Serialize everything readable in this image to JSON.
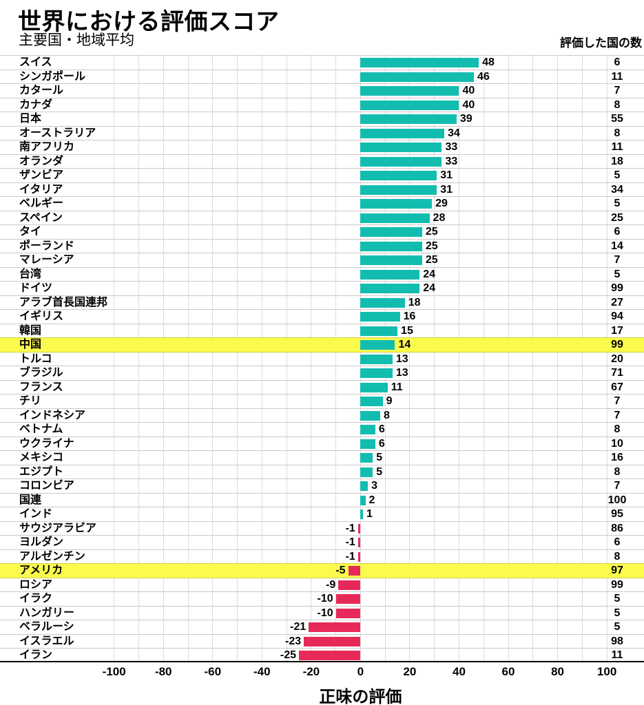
{
  "colors": {
    "positive_bar": "#12bdb0",
    "negative_bar": "#e7295a",
    "highlight_row": "#fbfb4d",
    "grid_vertical": "#dcdcdc",
    "grid_horizontal": "#c9c9c9",
    "axis_line": "#000000",
    "text": "#000000"
  },
  "chart_data": {
    "type": "bar",
    "orientation": "horizontal",
    "title": "世界における評価スコア",
    "subtitle": "主要国・地域平均",
    "counts_header": "評価した国の数",
    "xlabel": "正味の評価",
    "xlim": [
      -100,
      100
    ],
    "x_ticks": [
      -100,
      -80,
      -60,
      -40,
      -20,
      0,
      20,
      40,
      60,
      80,
      100
    ],
    "x_grid_step": 10,
    "grid": true,
    "legend": "none",
    "rows": [
      {
        "label": "スイス",
        "value": 48,
        "count": 6,
        "highlight": false
      },
      {
        "label": "シンガポール",
        "value": 46,
        "count": 11,
        "highlight": false
      },
      {
        "label": "カタール",
        "value": 40,
        "count": 7,
        "highlight": false
      },
      {
        "label": "カナダ",
        "value": 40,
        "count": 8,
        "highlight": false
      },
      {
        "label": "日本",
        "value": 39,
        "count": 55,
        "highlight": false
      },
      {
        "label": "オーストラリア",
        "value": 34,
        "count": 8,
        "highlight": false
      },
      {
        "label": "南アフリカ",
        "value": 33,
        "count": 11,
        "highlight": false
      },
      {
        "label": "オランダ",
        "value": 33,
        "count": 18,
        "highlight": false
      },
      {
        "label": "ザンビア",
        "value": 31,
        "count": 5,
        "highlight": false
      },
      {
        "label": "イタリア",
        "value": 31,
        "count": 34,
        "highlight": false
      },
      {
        "label": "ベルギー",
        "value": 29,
        "count": 5,
        "highlight": false
      },
      {
        "label": "スペイン",
        "value": 28,
        "count": 25,
        "highlight": false
      },
      {
        "label": "タイ",
        "value": 25,
        "count": 6,
        "highlight": false
      },
      {
        "label": "ポーランド",
        "value": 25,
        "count": 14,
        "highlight": false
      },
      {
        "label": "マレーシア",
        "value": 25,
        "count": 7,
        "highlight": false
      },
      {
        "label": "台湾",
        "value": 24,
        "count": 5,
        "highlight": false
      },
      {
        "label": "ドイツ",
        "value": 24,
        "count": 99,
        "highlight": false
      },
      {
        "label": "アラブ首長国連邦",
        "value": 18,
        "count": 27,
        "highlight": false
      },
      {
        "label": "イギリス",
        "value": 16,
        "count": 94,
        "highlight": false
      },
      {
        "label": "韓国",
        "value": 15,
        "count": 17,
        "highlight": false
      },
      {
        "label": "中国",
        "value": 14,
        "count": 99,
        "highlight": true
      },
      {
        "label": "トルコ",
        "value": 13,
        "count": 20,
        "highlight": false
      },
      {
        "label": "ブラジル",
        "value": 13,
        "count": 71,
        "highlight": false
      },
      {
        "label": "フランス",
        "value": 11,
        "count": 67,
        "highlight": false
      },
      {
        "label": "チリ",
        "value": 9,
        "count": 7,
        "highlight": false
      },
      {
        "label": "インドネシア",
        "value": 8,
        "count": 7,
        "highlight": false
      },
      {
        "label": "ベトナム",
        "value": 6,
        "count": 8,
        "highlight": false
      },
      {
        "label": "ウクライナ",
        "value": 6,
        "count": 10,
        "highlight": false
      },
      {
        "label": "メキシコ",
        "value": 5,
        "count": 16,
        "highlight": false
      },
      {
        "label": "エジプト",
        "value": 5,
        "count": 8,
        "highlight": false
      },
      {
        "label": "コロンビア",
        "value": 3,
        "count": 7,
        "highlight": false
      },
      {
        "label": "国連",
        "value": 2,
        "count": 100,
        "highlight": false
      },
      {
        "label": "インド",
        "value": 1,
        "count": 95,
        "highlight": false
      },
      {
        "label": "サウジアラビア",
        "value": -1,
        "count": 86,
        "highlight": false
      },
      {
        "label": "ヨルダン",
        "value": -1,
        "count": 6,
        "highlight": false
      },
      {
        "label": "アルゼンチン",
        "value": -1,
        "count": 8,
        "highlight": false
      },
      {
        "label": "アメリカ",
        "value": -5,
        "count": 97,
        "highlight": true
      },
      {
        "label": "ロシア",
        "value": -9,
        "count": 99,
        "highlight": false
      },
      {
        "label": "イラク",
        "value": -10,
        "count": 5,
        "highlight": false
      },
      {
        "label": "ハンガリー",
        "value": -10,
        "count": 5,
        "highlight": false
      },
      {
        "label": "ベラルーシ",
        "value": -21,
        "count": 5,
        "highlight": false
      },
      {
        "label": "イスラエル",
        "value": -23,
        "count": 98,
        "highlight": false
      },
      {
        "label": "イラン",
        "value": -25,
        "count": 11,
        "highlight": false
      }
    ]
  }
}
